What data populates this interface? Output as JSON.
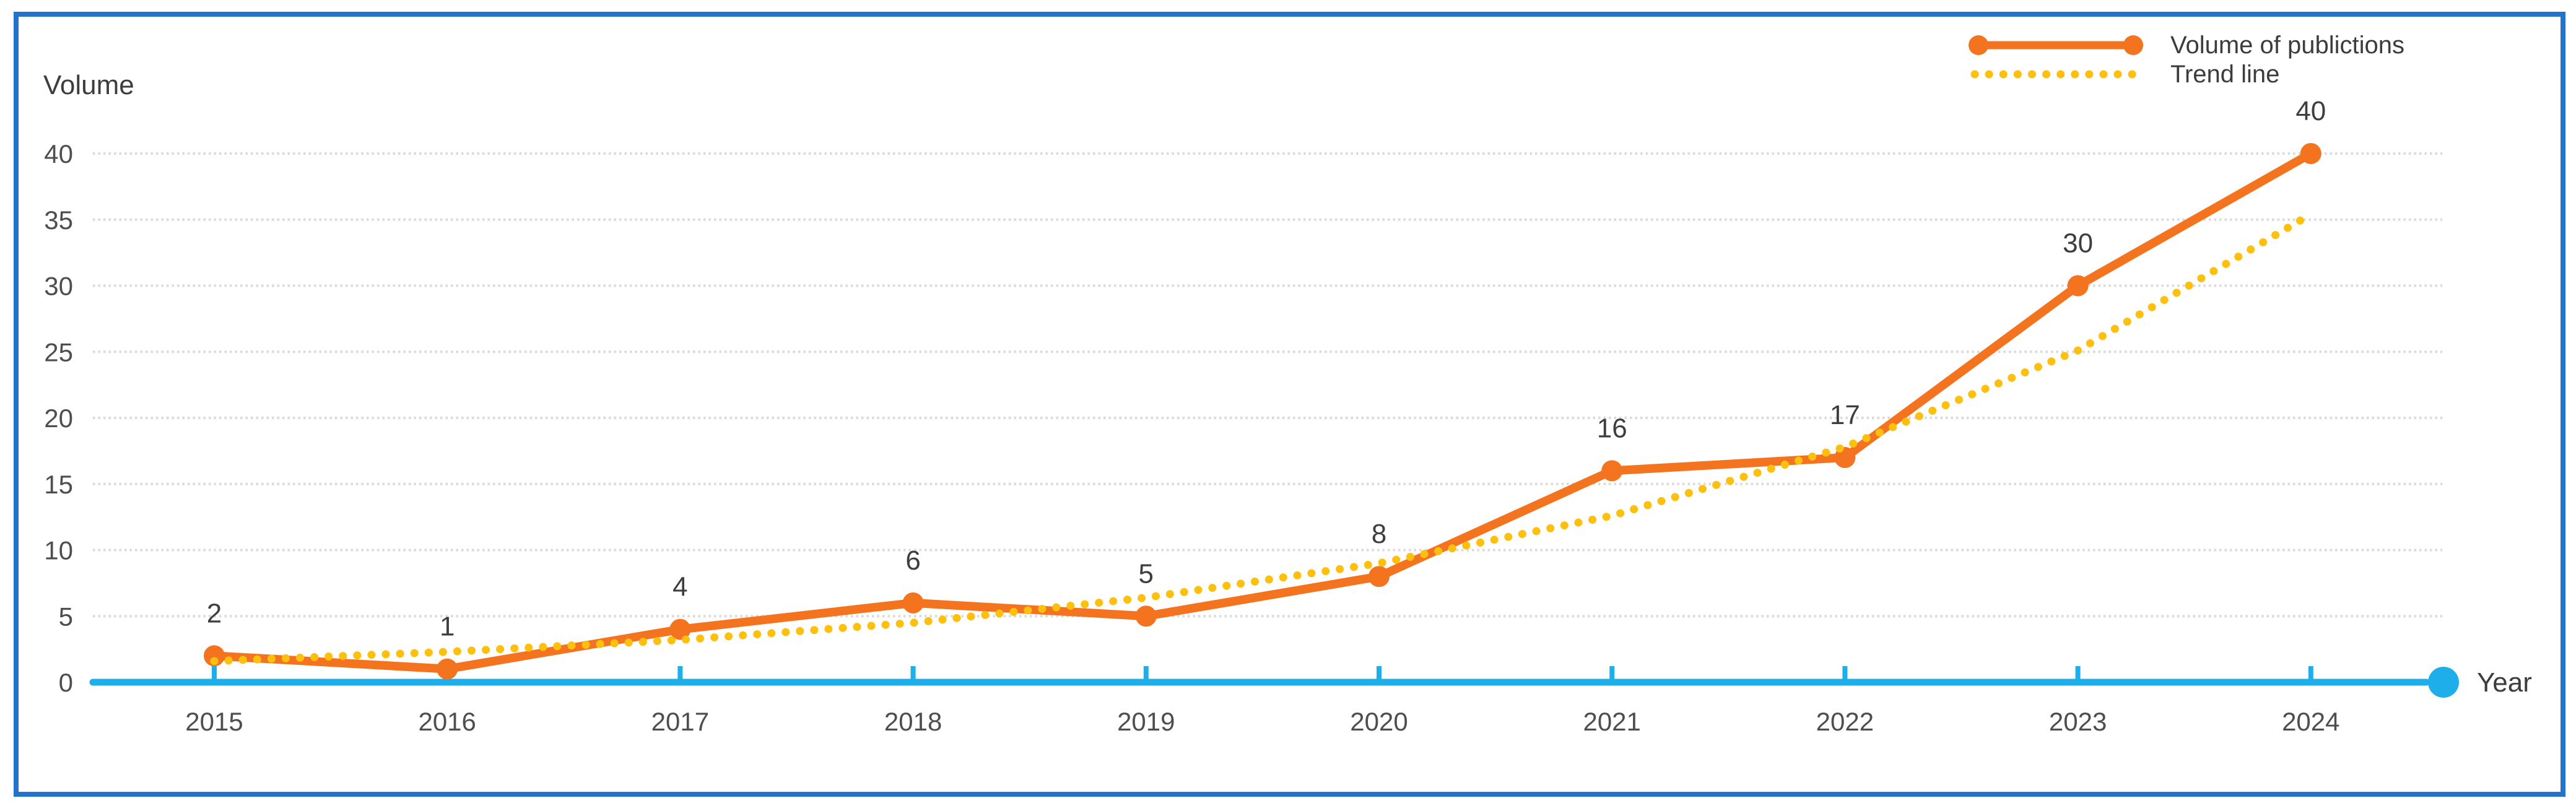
{
  "chart_data": {
    "type": "line",
    "categories": [
      "2015",
      "2016",
      "2017",
      "2018",
      "2019",
      "2020",
      "2021",
      "2022",
      "2023",
      "2024"
    ],
    "series": [
      {
        "name": "Volume of publictions",
        "values": [
          2,
          1,
          4,
          6,
          5,
          8,
          16,
          17,
          30,
          40
        ],
        "color": "#f4731e",
        "line_style": "solid",
        "markers": "circle",
        "data_labels_visible": true
      },
      {
        "name": "Trend line",
        "values": [
          1.6,
          2.3,
          3.2,
          4.5,
          6.4,
          9.0,
          12.6,
          17.8,
          25.1,
          35.4
        ],
        "color": "#fec00f",
        "line_style": "dotted",
        "markers": "none",
        "data_labels_visible": false
      }
    ],
    "y_axis": {
      "title": "Volume",
      "ticks": [
        0,
        5,
        10,
        15,
        20,
        25,
        30,
        35,
        40
      ],
      "range": [
        0,
        40
      ]
    },
    "x_axis": {
      "title": "Year"
    },
    "grid": "horizontal-dotted",
    "legend_position": "top-right"
  },
  "colors": {
    "series_line": "#f4731e",
    "trend_line": "#fec00f",
    "axis_line": "#1eaee9",
    "border_frame": "#2273cb",
    "gridline": "#dadada",
    "tick_label_text": "#4e4e52",
    "data_label_text": "#3e3e42",
    "title_text": "#3d3d3d"
  }
}
